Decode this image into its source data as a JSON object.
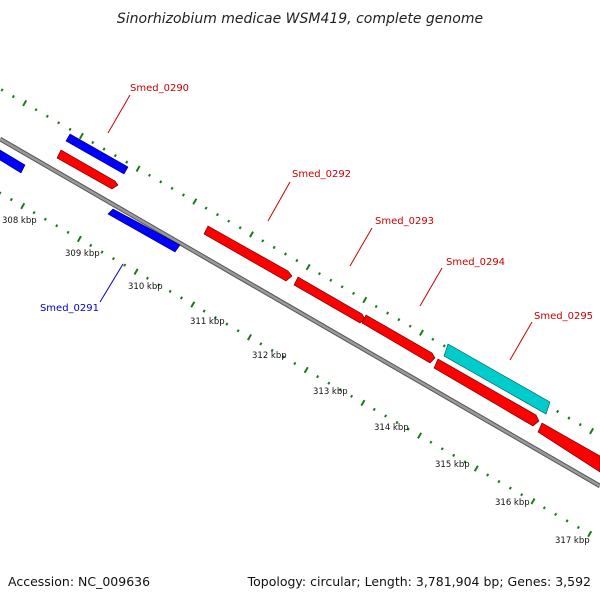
{
  "title": "Sinorhizobium medicae WSM419, complete genome",
  "footer": {
    "accession": "Accession: NC_009636",
    "topology": "Topology: circular; Length: 3,781,904 bp; Genes: 3,592"
  },
  "colors": {
    "backbone": "#8a8a8a",
    "ticks": "#1a7a1a",
    "forward_gene": "#ff0000",
    "reverse_gene": "#0000ff",
    "other_gene": "#00cccc",
    "forward_label": "#cc0000",
    "reverse_label": "#0000cc"
  },
  "ruler": {
    "unit": "kbp",
    "ticks": [
      {
        "label": "308 kbp"
      },
      {
        "label": "309 kbp"
      },
      {
        "label": "310 kbp"
      },
      {
        "label": "311 kbp"
      },
      {
        "label": "312 kbp"
      },
      {
        "label": "313 kbp"
      },
      {
        "label": "314 kbp"
      },
      {
        "label": "315 kbp"
      },
      {
        "label": "316 kbp"
      },
      {
        "label": "317 kbp"
      }
    ]
  },
  "genes": [
    {
      "name": "",
      "strand": "reverse",
      "color": "#0000ff"
    },
    {
      "name": "Smed_0290",
      "strand": "reverse",
      "color": "#0000ff"
    },
    {
      "name": "",
      "strand": "forward",
      "color": "#ff0000"
    },
    {
      "name": "Smed_0291",
      "strand": "reverse",
      "color": "#0000ff"
    },
    {
      "name": "Smed_0292",
      "strand": "forward",
      "color": "#ff0000"
    },
    {
      "name": "Smed_0293",
      "strand": "forward",
      "color": "#ff0000"
    },
    {
      "name": "Smed_0294",
      "strand": "forward",
      "color": "#ff0000"
    },
    {
      "name": "Smed_0295",
      "strand": "other",
      "color": "#00cccc"
    },
    {
      "name": "",
      "strand": "forward",
      "color": "#ff0000"
    },
    {
      "name": "",
      "strand": "forward",
      "color": "#ff0000"
    }
  ]
}
